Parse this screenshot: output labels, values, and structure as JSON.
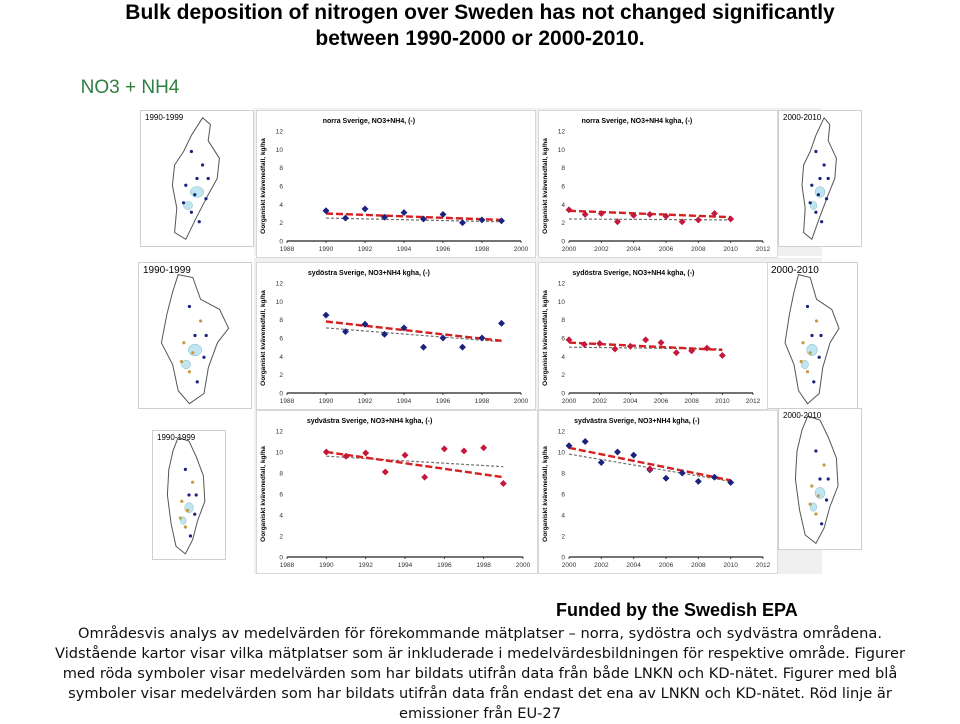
{
  "heading": {
    "line1": "Bulk deposition of nitrogen over Sweden has not changed significantly",
    "line2": "between 1990-2000 or 2000-2010."
  },
  "subheading": "NO3 + NH4",
  "funded": "Funded by the Swedish EPA",
  "caption": {
    "line1": "Områdesvis analys av medelvärden för förekommande mätplatser – norra, sydöstra och sydvästra områdena.",
    "line2": "Vidstående kartor visar vilka mätplatser som är inkluderade i medelvärdesbildningen för respektive område. Figurer",
    "line3": "med röda symboler visar medelvärden som har bildats utifrån data från både LNKN och KD-nätet. Figurer med blå",
    "line4": "symboler visar medelvärden som har bildats utifrån data från endast det ena av LNKN och KD-nätet. Röd linje är",
    "line5": "emissioner från EU-27"
  },
  "colors": {
    "red": "#c4183c",
    "blue": "#1a237e",
    "dashRed": "#d42020",
    "dashGray": "#707070",
    "subheading": "#2f7f3f"
  },
  "maps": [
    {
      "label": "1990-1999"
    },
    {
      "label": "2000-2010"
    },
    {
      "label": "1990-1999"
    },
    {
      "label": "2000-2010"
    },
    {
      "label": "1990-1999"
    },
    {
      "label": "2000-2010"
    }
  ],
  "chart_data": [
    {
      "type": "scatter",
      "title": "norra Sverige, NO3+NH4, (-)",
      "ylabel": "Oorganiskt kvävenedfall, kg/ha",
      "xticks": [
        "1988",
        "1990",
        "1992",
        "1994",
        "1996",
        "1998",
        "2000"
      ],
      "yticks": [
        "0",
        "2",
        "4",
        "6",
        "8",
        "10",
        "12"
      ],
      "xlim": [
        1988,
        2000
      ],
      "ylim": [
        0,
        12
      ],
      "series": [
        {
          "color": "blue",
          "points": [
            [
              1990,
              3.3
            ],
            [
              1991,
              2.5
            ],
            [
              1992,
              3.5
            ],
            [
              1993,
              2.6
            ],
            [
              1994,
              3.1
            ],
            [
              1995,
              2.4
            ],
            [
              1996,
              2.9
            ],
            [
              1997,
              2.0
            ],
            [
              1998,
              2.3
            ],
            [
              1999,
              2.2
            ]
          ]
        }
      ],
      "trend_red": [
        [
          1990,
          3.0
        ],
        [
          1999,
          2.3
        ]
      ],
      "trend_gray": [
        [
          1990,
          2.5
        ],
        [
          1999,
          2.1
        ]
      ]
    },
    {
      "type": "scatter",
      "title": "norra Sverige, NO3+NH4 kgha, (-)",
      "ylabel": "Oorganiskt kvävenedfall, kg/ha",
      "xticks": [
        "2000",
        "2002",
        "2004",
        "2006",
        "2008",
        "2010",
        "2012"
      ],
      "yticks": [
        "0",
        "2",
        "4",
        "6",
        "8",
        "10",
        "12"
      ],
      "xlim": [
        2000,
        2012
      ],
      "ylim": [
        0,
        12
      ],
      "series": [
        {
          "color": "red",
          "points": [
            [
              2000,
              3.4
            ],
            [
              2001,
              2.9
            ],
            [
              2002,
              3.0
            ],
            [
              2003,
              2.1
            ],
            [
              2004,
              2.8
            ],
            [
              2005,
              2.9
            ],
            [
              2006,
              2.7
            ],
            [
              2007,
              2.1
            ],
            [
              2008,
              2.3
            ],
            [
              2009,
              3.0
            ],
            [
              2010,
              2.4
            ]
          ]
        }
      ],
      "trend_red": [
        [
          2000,
          3.3
        ],
        [
          2010,
          2.6
        ]
      ],
      "trend_gray": [
        [
          2000,
          2.4
        ],
        [
          2010,
          2.3
        ]
      ]
    },
    {
      "type": "scatter",
      "title": "sydöstra Sverige, NO3+NH4 kgha, (-)",
      "ylabel": "Oorganiskt kvävenedfall, kg/ha",
      "xticks": [
        "1988",
        "1990",
        "1992",
        "1994",
        "1996",
        "1998",
        "2000"
      ],
      "yticks": [
        "0",
        "2",
        "4",
        "6",
        "8",
        "10",
        "12"
      ],
      "xlim": [
        1988,
        2000
      ],
      "ylim": [
        0,
        12
      ],
      "series": [
        {
          "color": "blue",
          "points": [
            [
              1990,
              8.5
            ],
            [
              1991,
              6.7
            ],
            [
              1992,
              7.5
            ],
            [
              1993,
              6.4
            ],
            [
              1994,
              7.1
            ],
            [
              1995,
              5.0
            ],
            [
              1996,
              6.0
            ],
            [
              1997,
              5.0
            ],
            [
              1998,
              6.0
            ],
            [
              1999,
              7.6
            ]
          ]
        }
      ],
      "trend_red": [
        [
          1990,
          7.8
        ],
        [
          1999,
          5.7
        ]
      ],
      "trend_gray": [
        [
          1990,
          7.1
        ],
        [
          1999,
          5.6
        ]
      ]
    },
    {
      "type": "scatter",
      "title": "sydöstra Sverige, NO3+NH4 kgha, (-)",
      "ylabel": "Oorganiskt kvävenedfall, kg/ha",
      "xticks": [
        "2000",
        "2002",
        "2004",
        "2006",
        "2008",
        "2010",
        "2012"
      ],
      "yticks": [
        "0",
        "2",
        "4",
        "6",
        "8",
        "10",
        "12"
      ],
      "xlim": [
        2000,
        2012
      ],
      "ylim": [
        0,
        12
      ],
      "series": [
        {
          "color": "red",
          "points": [
            [
              2000,
              5.8
            ],
            [
              2001,
              5.3
            ],
            [
              2002,
              5.4
            ],
            [
              2003,
              4.8
            ],
            [
              2004,
              5.1
            ],
            [
              2005,
              5.8
            ],
            [
              2006,
              5.5
            ],
            [
              2007,
              4.4
            ],
            [
              2008,
              4.6
            ],
            [
              2009,
              4.9
            ],
            [
              2010,
              4.1
            ]
          ]
        }
      ],
      "trend_red": [
        [
          2000,
          5.5
        ],
        [
          2010,
          4.7
        ]
      ],
      "trend_gray": [
        [
          2000,
          5.0
        ],
        [
          2010,
          4.8
        ]
      ]
    },
    {
      "type": "scatter",
      "title": "sydvästra Sverige, NO3+NH4 kgha, (-)",
      "ylabel": "Oorganiskt kvävenedfall, kg/ha",
      "xticks": [
        "1988",
        "1990",
        "1992",
        "1994",
        "1996",
        "1998",
        "2000"
      ],
      "yticks": [
        "0",
        "2",
        "4",
        "6",
        "8",
        "10",
        "12"
      ],
      "xlim": [
        1988,
        2000
      ],
      "ylim": [
        0,
        12
      ],
      "series": [
        {
          "color": "red",
          "points": [
            [
              1990,
              10.0
            ],
            [
              1991,
              9.6
            ],
            [
              1992,
              9.9
            ],
            [
              1993,
              8.1
            ],
            [
              1994,
              9.7
            ],
            [
              1995,
              7.6
            ],
            [
              1996,
              10.3
            ],
            [
              1997,
              10.1
            ],
            [
              1998,
              10.4
            ],
            [
              1999,
              7.0
            ]
          ]
        }
      ],
      "trend_red": [
        [
          1990,
          10.0
        ],
        [
          1999,
          7.6
        ]
      ],
      "trend_gray": [
        [
          1990,
          9.6
        ],
        [
          1999,
          8.6
        ]
      ]
    },
    {
      "type": "scatter",
      "title": "sydvästra Sverige, NO3+NH4 kgha, (-)",
      "ylabel": "Oorganiskt kvävenedfall, kg/ha",
      "xticks": [
        "2000",
        "2002",
        "2004",
        "2006",
        "2008",
        "2010",
        "2012"
      ],
      "yticks": [
        "0",
        "2",
        "4",
        "6",
        "8",
        "10",
        "12"
      ],
      "xlim": [
        2000,
        2012
      ],
      "ylim": [
        0,
        12
      ],
      "series": [
        {
          "color": "blue",
          "points": [
            [
              2000,
              10.6
            ],
            [
              2001,
              11.0
            ],
            [
              2002,
              9.0
            ],
            [
              2003,
              10.0
            ],
            [
              2004,
              9.7
            ],
            [
              2005,
              8.3
            ],
            [
              2006,
              7.5
            ],
            [
              2007,
              8.0
            ],
            [
              2008,
              7.2
            ],
            [
              2009,
              7.6
            ],
            [
              2010,
              7.1
            ]
          ]
        },
        {
          "color": "red",
          "points": [
            [
              2005,
              8.4
            ]
          ]
        }
      ],
      "trend_red": [
        [
          2000,
          10.4
        ],
        [
          2010,
          7.3
        ]
      ],
      "trend_gray": [
        [
          2000,
          9.8
        ],
        [
          2010,
          7.2
        ]
      ]
    }
  ]
}
